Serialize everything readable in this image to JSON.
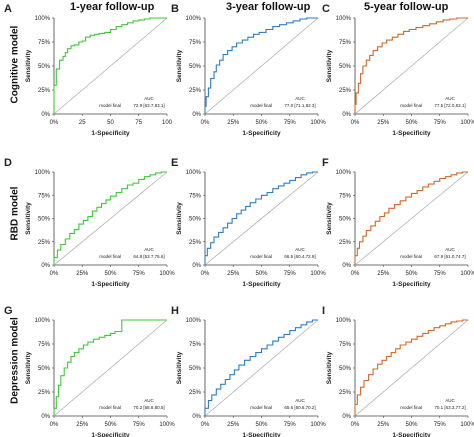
{
  "figure": {
    "column_titles": [
      "1-year follow-up",
      "3-year follow-up",
      "5-year follow-up"
    ],
    "row_titles": [
      "Cognitive model",
      "RBD model",
      "Depression model"
    ]
  },
  "chart_data": [
    {
      "type": "line",
      "panel": "A",
      "model": "Cognitive model",
      "followup": "1-year follow-up",
      "xlabel": "1-Specificity",
      "ylabel": "Sensitivity",
      "xlim": [
        0,
        100
      ],
      "ylim": [
        0,
        100
      ],
      "xticks": [
        "0%",
        "25",
        "50",
        "75",
        "100"
      ],
      "yticks": [
        "0%",
        "25%",
        "50%",
        "75%",
        "100%"
      ],
      "color": "#41c83a",
      "legend_name": "model final",
      "legend_header": "AUC",
      "auc": "72.9 [63.7,83.1]",
      "series": [
        {
          "x": [
            0,
            2,
            5,
            8,
            10,
            12,
            15,
            18,
            22,
            25,
            28,
            32,
            36,
            40,
            45,
            50,
            55,
            60,
            65,
            70,
            75,
            80,
            85,
            90,
            95,
            100
          ],
          "y": [
            0,
            30,
            47,
            56,
            60,
            64,
            68,
            71,
            72,
            75,
            76,
            80,
            82,
            83,
            84,
            85,
            88,
            91,
            93,
            95,
            97,
            98,
            99,
            100,
            100,
            100
          ]
        }
      ]
    },
    {
      "type": "line",
      "panel": "B",
      "model": "Cognitive model",
      "followup": "3-year follow-up",
      "xlabel": "1-Specificity",
      "ylabel": "Sensitivity",
      "xlim": [
        0,
        100
      ],
      "ylim": [
        0,
        100
      ],
      "xticks": [
        "0%",
        "25%",
        "50%",
        "75%",
        "100%"
      ],
      "yticks": [
        "0%",
        "25%",
        "50%",
        "75%",
        "100%"
      ],
      "color": "#2f7ec4",
      "legend_name": "model final",
      "legend_header": "AUC",
      "auc": "77.0 [71.1,82.3]",
      "series": [
        {
          "x": [
            0,
            1,
            3,
            5,
            8,
            10,
            13,
            16,
            20,
            24,
            28,
            33,
            38,
            43,
            48,
            54,
            60,
            66,
            72,
            78,
            84,
            90,
            95,
            100
          ],
          "y": [
            0,
            8,
            18,
            27,
            37,
            44,
            51,
            56,
            62,
            66,
            70,
            74,
            77,
            80,
            83,
            85,
            88,
            91,
            93,
            95,
            97,
            99,
            100,
            100
          ]
        }
      ]
    },
    {
      "type": "line",
      "panel": "C",
      "model": "Cognitive model",
      "followup": "5-year follow-up",
      "xlabel": "1-Specificity",
      "ylabel": "Sensitivity",
      "xlim": [
        0,
        100
      ],
      "ylim": [
        0,
        100
      ],
      "xticks": [
        "0%",
        "25%",
        "50%",
        "75%",
        "100%"
      ],
      "yticks": [
        "0%",
        "25%",
        "50%",
        "75%",
        "100%"
      ],
      "color": "#d2682a",
      "legend_name": "model final",
      "legend_header": "AUC",
      "auc": "77.5 [72.0,83.1]",
      "series": [
        {
          "x": [
            0,
            1,
            3,
            5,
            7,
            10,
            13,
            16,
            20,
            24,
            28,
            33,
            38,
            43,
            48,
            54,
            60,
            66,
            72,
            78,
            84,
            90,
            95,
            100
          ],
          "y": [
            0,
            10,
            22,
            32,
            42,
            50,
            56,
            61,
            66,
            70,
            74,
            77,
            80,
            83,
            86,
            88,
            90,
            92,
            94,
            96,
            98,
            99,
            100,
            100
          ]
        }
      ]
    },
    {
      "type": "line",
      "panel": "D",
      "model": "RBD model",
      "followup": "1-year follow-up",
      "xlabel": "1-Specificity",
      "ylabel": "Sensitivity",
      "xlim": [
        0,
        100
      ],
      "ylim": [
        0,
        100
      ],
      "xticks": [
        "0%",
        "25%",
        "50%",
        "75%",
        "100%"
      ],
      "yticks": [
        "0%",
        "25%",
        "50%",
        "75%",
        "100%"
      ],
      "color": "#41c83a",
      "legend_name": "model final",
      "legend_header": "AUC",
      "auc": "64.8 [53.7,76.6]",
      "series": [
        {
          "x": [
            0,
            3,
            6,
            10,
            14,
            18,
            22,
            26,
            30,
            34,
            38,
            42,
            46,
            50,
            55,
            60,
            65,
            70,
            75,
            80,
            85,
            90,
            95,
            100
          ],
          "y": [
            0,
            8,
            16,
            22,
            28,
            34,
            38,
            44,
            48,
            52,
            58,
            62,
            66,
            70,
            74,
            78,
            82,
            86,
            88,
            92,
            95,
            97,
            99,
            100
          ]
        }
      ]
    },
    {
      "type": "line",
      "panel": "E",
      "model": "RBD model",
      "followup": "3-year follow-up",
      "xlabel": "1-Specificity",
      "ylabel": "Sensitivity",
      "xlim": [
        0,
        100
      ],
      "ylim": [
        0,
        100
      ],
      "xticks": [
        "0%",
        "25%",
        "50%",
        "75%",
        "100%"
      ],
      "yticks": [
        "0%",
        "25%",
        "50%",
        "75%",
        "100%"
      ],
      "color": "#2f7ec4",
      "legend_name": "model final",
      "legend_header": "AUC",
      "auc": "66.6 [60.4,72.9]",
      "series": [
        {
          "x": [
            0,
            2,
            5,
            8,
            12,
            16,
            20,
            24,
            28,
            32,
            36,
            40,
            45,
            50,
            55,
            60,
            65,
            70,
            75,
            80,
            85,
            90,
            95,
            100
          ],
          "y": [
            0,
            10,
            18,
            24,
            30,
            35,
            40,
            45,
            50,
            55,
            59,
            63,
            67,
            71,
            75,
            78,
            82,
            85,
            88,
            91,
            94,
            97,
            99,
            100
          ]
        }
      ]
    },
    {
      "type": "line",
      "panel": "F",
      "model": "RBD model",
      "followup": "5-year follow-up",
      "xlabel": "1-Specificity",
      "ylabel": "Sensitivity",
      "xlim": [
        0,
        100
      ],
      "ylim": [
        0,
        100
      ],
      "xticks": [
        "0%",
        "25%",
        "50%",
        "75%",
        "100%"
      ],
      "yticks": [
        "0%",
        "25%",
        "50%",
        "75%",
        "100%"
      ],
      "color": "#d2682a",
      "legend_name": "model final",
      "legend_header": "AUC",
      "auc": "67.9 [61.0,74.7]",
      "series": [
        {
          "x": [
            0,
            2,
            4,
            7,
            10,
            14,
            18,
            22,
            26,
            30,
            35,
            40,
            45,
            50,
            55,
            60,
            65,
            70,
            75,
            80,
            85,
            90,
            95,
            100
          ],
          "y": [
            0,
            10,
            18,
            25,
            31,
            37,
            42,
            47,
            52,
            56,
            61,
            65,
            69,
            73,
            77,
            80,
            84,
            87,
            90,
            93,
            95,
            97,
            99,
            100
          ]
        }
      ]
    },
    {
      "type": "line",
      "panel": "G",
      "model": "Depression model",
      "followup": "1-year follow-up",
      "xlabel": "1-Specificity",
      "ylabel": "Sensitivity",
      "xlim": [
        0,
        100
      ],
      "ylim": [
        0,
        100
      ],
      "xticks": [
        "0%",
        "25%",
        "50%",
        "75%",
        "100%"
      ],
      "yticks": [
        "0%",
        "25%",
        "50%",
        "75%",
        "100%"
      ],
      "color": "#41c83a",
      "legend_name": "model final",
      "legend_header": "AUC",
      "auc": "70.2 [58.8,80.5]",
      "series": [
        {
          "x": [
            0,
            2,
            4,
            6,
            9,
            12,
            15,
            18,
            22,
            26,
            30,
            35,
            40,
            45,
            50,
            54,
            58,
            60,
            62,
            70,
            80,
            90,
            100
          ],
          "y": [
            0,
            8,
            20,
            32,
            42,
            50,
            56,
            62,
            66,
            70,
            74,
            77,
            80,
            82,
            84,
            86,
            88,
            88,
            100,
            100,
            100,
            100,
            100
          ]
        }
      ]
    },
    {
      "type": "line",
      "panel": "H",
      "model": "Depression model",
      "followup": "3-year follow-up",
      "xlabel": "1-Specificity",
      "ylabel": "Sensitivity",
      "xlim": [
        0,
        100
      ],
      "ylim": [
        0,
        100
      ],
      "xticks": [
        "0%",
        "25%",
        "50%",
        "75%",
        "100%"
      ],
      "yticks": [
        "0%",
        "25%",
        "50%",
        "75%",
        "100%"
      ],
      "color": "#2f7ec4",
      "legend_name": "model final",
      "legend_header": "AUC",
      "auc": "65.6 [60.5,70.2]",
      "series": [
        {
          "x": [
            0,
            3,
            6,
            10,
            14,
            18,
            22,
            26,
            30,
            35,
            40,
            45,
            50,
            55,
            60,
            65,
            70,
            75,
            80,
            85,
            90,
            95,
            100
          ],
          "y": [
            0,
            8,
            16,
            22,
            28,
            33,
            38,
            43,
            48,
            53,
            58,
            62,
            66,
            70,
            74,
            78,
            82,
            85,
            89,
            92,
            95,
            98,
            100
          ]
        }
      ]
    },
    {
      "type": "line",
      "panel": "I",
      "model": "Depression model",
      "followup": "5-year follow-up",
      "xlabel": "1-Specificity",
      "ylabel": "Sensitivity",
      "xlim": [
        0,
        100
      ],
      "ylim": [
        0,
        100
      ],
      "xticks": [
        "0%",
        "25%",
        "50%",
        "75%",
        "100%"
      ],
      "yticks": [
        "0%",
        "25%",
        "50%",
        "75%",
        "100%"
      ],
      "color": "#d2682a",
      "legend_name": "model final",
      "legend_header": "AUC",
      "auc": "70.1 [63.3,77.2]",
      "series": [
        {
          "x": [
            0,
            2,
            5,
            8,
            12,
            16,
            20,
            24,
            28,
            32,
            36,
            40,
            45,
            50,
            55,
            60,
            65,
            70,
            75,
            80,
            85,
            90,
            95,
            100
          ],
          "y": [
            0,
            12,
            22,
            30,
            37,
            43,
            49,
            54,
            58,
            62,
            66,
            70,
            74,
            77,
            80,
            83,
            86,
            89,
            92,
            94,
            96,
            98,
            99,
            100
          ]
        }
      ]
    }
  ]
}
